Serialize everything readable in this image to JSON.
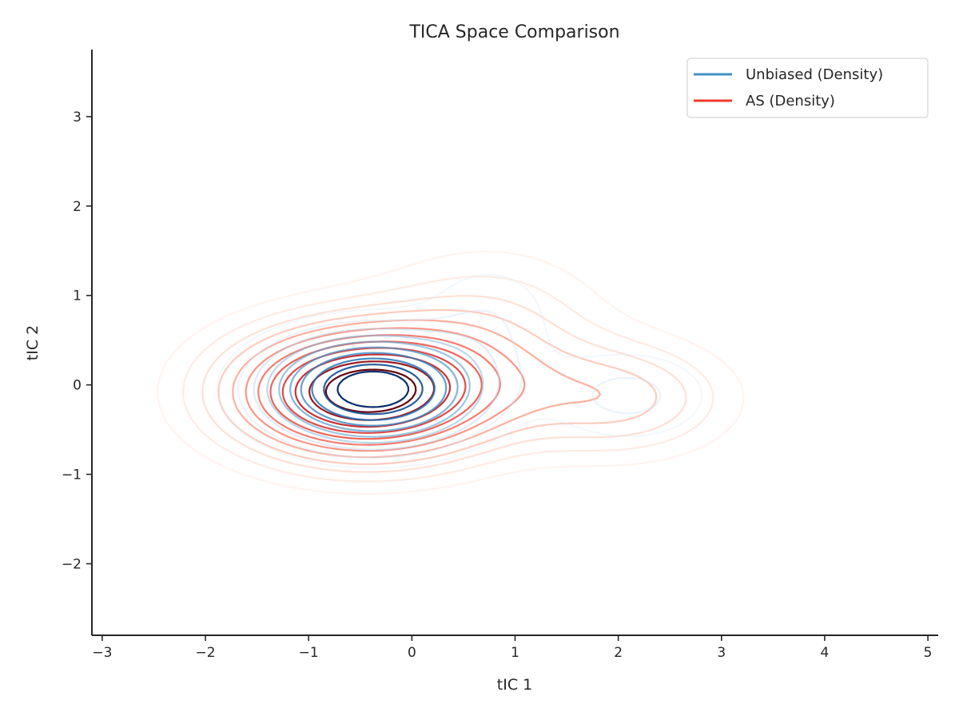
{
  "chart_data": {
    "type": "contour",
    "title": "TICA Space Comparison",
    "xlabel": "tIC 1",
    "ylabel": "tIC 2",
    "xlim": [
      -3.1,
      5.1
    ],
    "ylim": [
      -2.8,
      3.75
    ],
    "xticks": [
      -3,
      -2,
      -1,
      0,
      1,
      2,
      3,
      4,
      5
    ],
    "yticks": [
      -2,
      -1,
      0,
      1,
      2,
      3
    ],
    "xtick_labels": [
      "−3",
      "−2",
      "−1",
      "0",
      "1",
      "2",
      "3",
      "4",
      "5"
    ],
    "ytick_labels": [
      "−2",
      "−1",
      "0",
      "1",
      "2",
      "3"
    ],
    "grid": false,
    "legend_position": "top-right",
    "series": [
      {
        "name": "Unbiased (Density)",
        "color": "#4292c6",
        "colormap": "Blues",
        "components": [
          {
            "mean": [
              -0.38,
              -0.05
            ],
            "sigma": [
              0.65,
              0.38
            ],
            "weight": 0.82
          },
          {
            "mean": [
              2.1,
              -0.12
            ],
            "sigma": [
              0.55,
              0.35
            ],
            "weight": 0.1
          },
          {
            "mean": [
              0.75,
              0.75
            ],
            "sigma": [
              0.45,
              0.45
            ],
            "weight": 0.08
          }
        ],
        "levels": 10
      },
      {
        "name": "AS (Density)",
        "color": "#ef3b2c",
        "colormap": "Reds",
        "components": [
          {
            "mean": [
              -0.45,
              -0.08
            ],
            "sigma": [
              0.85,
              0.48
            ],
            "weight": 0.72
          },
          {
            "mean": [
              0.75,
              0.6
            ],
            "sigma": [
              0.75,
              0.6
            ],
            "weight": 0.14
          },
          {
            "mean": [
              2.0,
              -0.15
            ],
            "sigma": [
              0.7,
              0.42
            ],
            "weight": 0.14
          }
        ],
        "levels": 12
      }
    ]
  }
}
